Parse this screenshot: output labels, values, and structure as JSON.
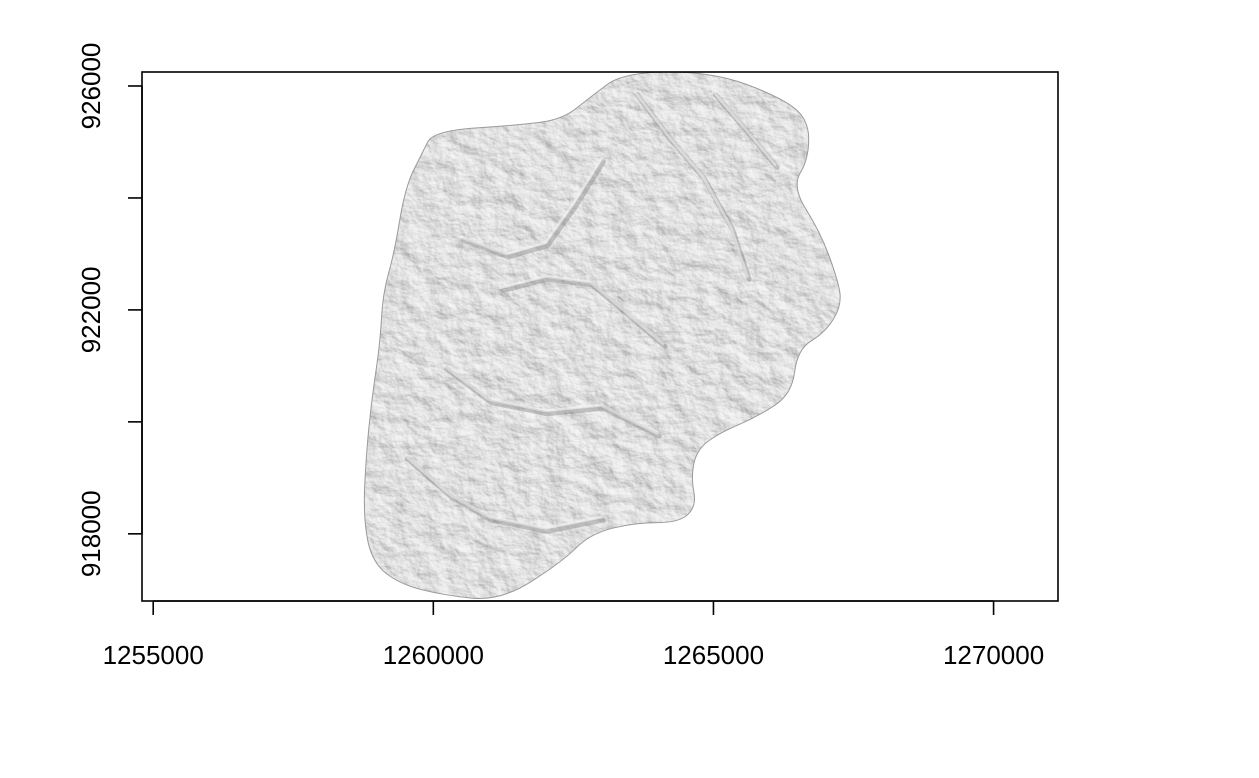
{
  "chart_data": {
    "type": "heatmap",
    "description_type": "raster hillshade",
    "colormap": "grayscale",
    "x": {
      "ticks": [
        1255000,
        1260000,
        1265000,
        1270000
      ],
      "tick_labels": [
        "1255000",
        "1260000",
        "1265000",
        "1270000"
      ],
      "range": [
        1254800,
        1271150
      ]
    },
    "y": {
      "ticks": [
        918000,
        920000,
        922000,
        924000,
        926000
      ],
      "tick_labels": [
        "918000",
        "",
        "922000",
        "",
        "926000"
      ],
      "range": [
        916800,
        926250
      ]
    },
    "grid": false,
    "legend": "none",
    "outline": [
      [
        1261200,
        916800
      ],
      [
        1260200,
        916900
      ],
      [
        1259400,
        917100
      ],
      [
        1258900,
        917500
      ],
      [
        1258750,
        918300
      ],
      [
        1258800,
        919400
      ],
      [
        1258900,
        920400
      ],
      [
        1259050,
        921400
      ],
      [
        1259100,
        922300
      ],
      [
        1259300,
        923000
      ],
      [
        1259500,
        924200
      ],
      [
        1259800,
        924800
      ],
      [
        1260000,
        925200
      ],
      [
        1261500,
        925300
      ],
      [
        1262300,
        925400
      ],
      [
        1262800,
        925800
      ],
      [
        1263400,
        926250
      ],
      [
        1265000,
        926250
      ],
      [
        1266200,
        925800
      ],
      [
        1266700,
        925400
      ],
      [
        1266700,
        924700
      ],
      [
        1266400,
        924200
      ],
      [
        1266900,
        923400
      ],
      [
        1267200,
        922600
      ],
      [
        1267300,
        922100
      ],
      [
        1267000,
        921600
      ],
      [
        1266500,
        921300
      ],
      [
        1266400,
        920500
      ],
      [
        1265800,
        920100
      ],
      [
        1265100,
        919800
      ],
      [
        1264700,
        919500
      ],
      [
        1264600,
        919000
      ],
      [
        1264700,
        918500
      ],
      [
        1264400,
        918200
      ],
      [
        1263600,
        918200
      ],
      [
        1262800,
        918000
      ],
      [
        1262300,
        917500
      ]
    ],
    "ridges": [
      [
        [
          1261200,
          922400
        ],
        [
          1262000,
          922600
        ],
        [
          1262800,
          922500
        ],
        [
          1263400,
          922000
        ],
        [
          1264100,
          921400
        ]
      ],
      [
        [
          1260500,
          923300
        ],
        [
          1261300,
          923000
        ],
        [
          1262000,
          923200
        ],
        [
          1262500,
          923900
        ],
        [
          1263000,
          924700
        ]
      ],
      [
        [
          1260200,
          921000
        ],
        [
          1261000,
          920400
        ],
        [
          1262000,
          920200
        ],
        [
          1263000,
          920300
        ],
        [
          1264000,
          919800
        ]
      ],
      [
        [
          1259500,
          919400
        ],
        [
          1260300,
          918700
        ],
        [
          1261000,
          918300
        ],
        [
          1262000,
          918100
        ],
        [
          1263000,
          918300
        ]
      ],
      [
        [
          1263600,
          925900
        ],
        [
          1264200,
          925100
        ],
        [
          1264800,
          924400
        ],
        [
          1265300,
          923500
        ],
        [
          1265600,
          922600
        ]
      ],
      [
        [
          1265000,
          925900
        ],
        [
          1265600,
          925200
        ],
        [
          1266100,
          924600
        ]
      ]
    ]
  }
}
